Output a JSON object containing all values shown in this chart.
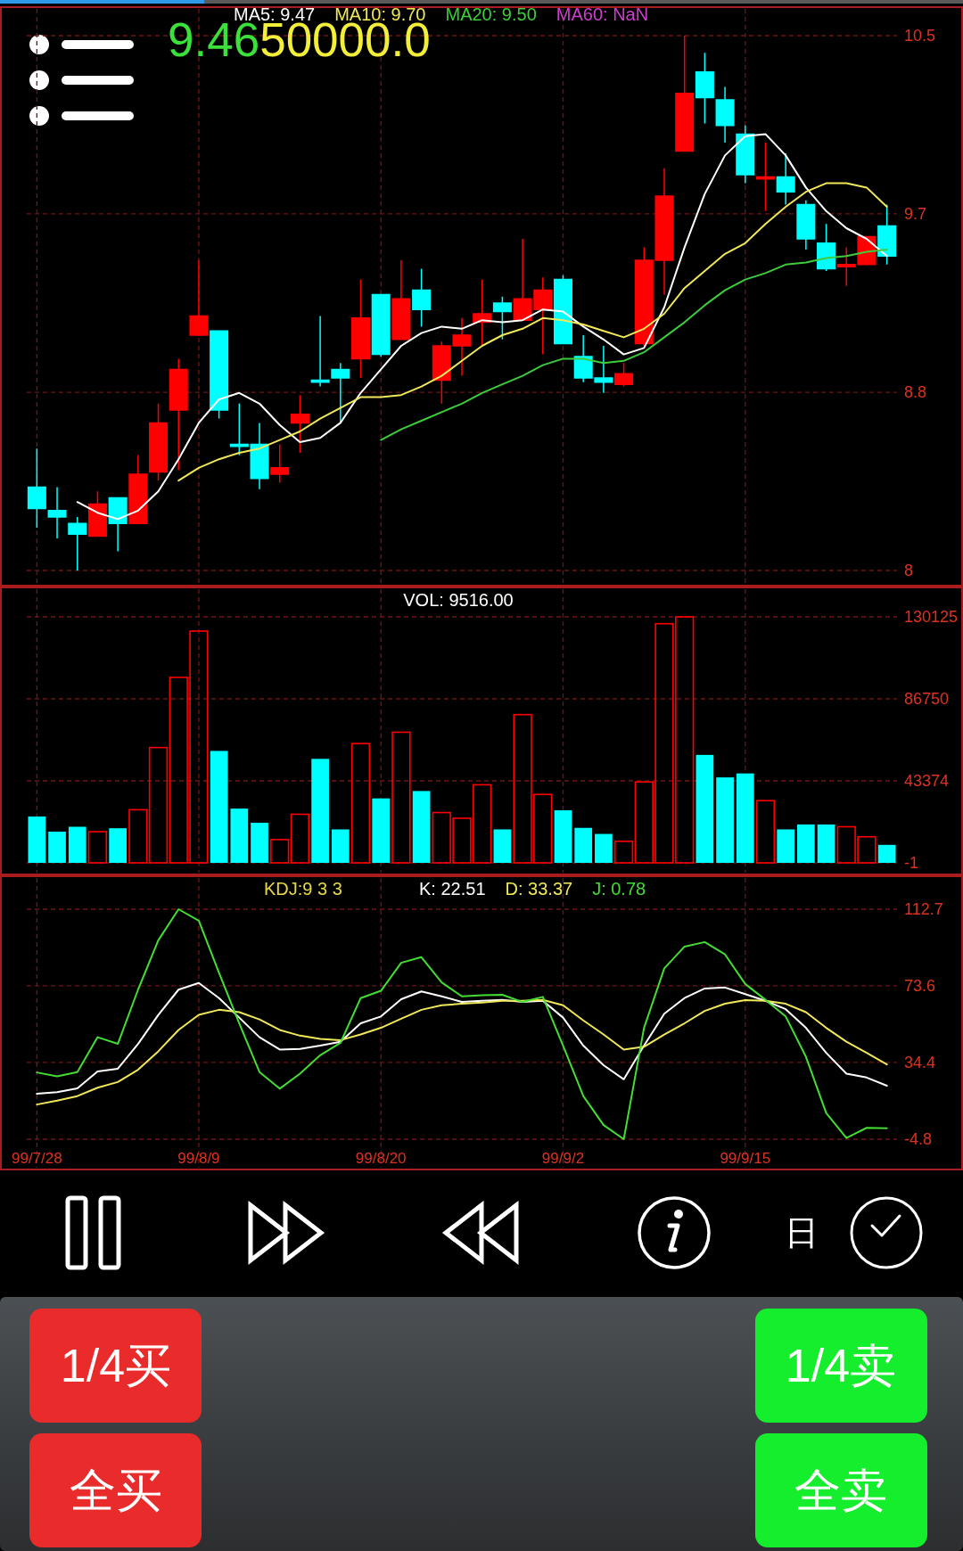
{
  "chart_data": [
    {
      "type": "candlestick",
      "categories": [
        null,
        null,
        null,
        null,
        null,
        null,
        null,
        null,
        null,
        null,
        null,
        null,
        null,
        null,
        null,
        null,
        null,
        null,
        null,
        null,
        null,
        null,
        null,
        null,
        null,
        null,
        null,
        null,
        null,
        null,
        null,
        null,
        null,
        null,
        null,
        null,
        null,
        null,
        null,
        null,
        null,
        null,
        null
      ],
      "ohlc": [
        [
          8.39,
          8.57,
          8.2,
          8.29
        ],
        [
          8.28,
          8.39,
          8.15,
          8.25
        ],
        [
          8.22,
          8.25,
          8.0,
          8.17
        ],
        [
          8.16,
          8.37,
          8.16,
          8.31
        ],
        [
          8.34,
          8.34,
          8.09,
          8.22
        ],
        [
          8.22,
          8.54,
          8.22,
          8.45
        ],
        [
          8.46,
          8.78,
          8.42,
          8.69
        ],
        [
          8.75,
          8.99,
          8.47,
          8.94
        ],
        [
          9.1,
          9.45,
          9.1,
          9.19
        ],
        [
          9.12,
          9.12,
          8.71,
          8.75
        ],
        [
          8.59,
          8.78,
          8.54,
          8.58
        ],
        [
          8.59,
          8.69,
          8.38,
          8.43
        ],
        [
          8.45,
          8.59,
          8.41,
          8.48
        ],
        [
          8.69,
          8.82,
          8.55,
          8.73
        ],
        [
          8.89,
          9.19,
          8.86,
          8.88
        ],
        [
          8.94,
          8.97,
          8.69,
          8.9
        ],
        [
          8.99,
          9.36,
          8.9,
          9.18
        ],
        [
          9.29,
          9.29,
          9.0,
          9.01
        ],
        [
          9.08,
          9.45,
          9.08,
          9.27
        ],
        [
          9.31,
          9.41,
          9.14,
          9.22
        ],
        [
          8.89,
          9.07,
          8.78,
          9.05
        ],
        [
          9.05,
          9.18,
          8.91,
          9.1
        ],
        [
          9.16,
          9.36,
          9.05,
          9.2
        ],
        [
          9.25,
          9.28,
          9.08,
          9.21
        ],
        [
          9.17,
          9.55,
          9.17,
          9.27
        ],
        [
          9.22,
          9.37,
          9.01,
          9.31
        ],
        [
          9.36,
          9.38,
          9.06,
          9.06
        ],
        [
          9.0,
          9.1,
          8.88,
          8.9
        ],
        [
          8.9,
          9.05,
          8.83,
          8.88
        ],
        [
          8.87,
          8.97,
          8.86,
          8.92
        ],
        [
          9.06,
          9.51,
          9.05,
          9.45
        ],
        [
          9.45,
          9.88,
          9.29,
          9.75
        ],
        [
          9.96,
          10.5,
          9.96,
          10.23
        ],
        [
          10.33,
          10.42,
          10.09,
          10.21
        ],
        [
          10.2,
          10.26,
          10.0,
          10.08
        ],
        [
          10.04,
          10.08,
          9.81,
          9.85
        ],
        [
          9.83,
          10.0,
          9.68,
          9.84
        ],
        [
          9.84,
          9.95,
          9.71,
          9.77
        ],
        [
          9.71,
          9.73,
          9.5,
          9.55
        ],
        [
          9.53,
          9.62,
          9.4,
          9.41
        ],
        [
          9.42,
          9.51,
          9.33,
          9.43
        ],
        [
          9.43,
          9.56,
          9.43,
          9.56
        ],
        [
          9.61,
          9.71,
          9.43,
          9.47
        ]
      ],
      "colors": [
        "#00ffff",
        "#00ffff",
        "#00ffff",
        "#ff0000",
        "#00ffff",
        "#ff0000",
        "#ff0000",
        "#ff0000",
        "#ff0000",
        "#00ffff",
        "#00ffff",
        "#00ffff",
        "#ff0000",
        "#ff0000",
        "#00ffff",
        "#00ffff",
        "#ff0000",
        "#00ffff",
        "#ff0000",
        "#00ffff",
        "#ff0000",
        "#ff0000",
        "#ff0000",
        "#00ffff",
        "#ff0000",
        "#ff0000",
        "#00ffff",
        "#00ffff",
        "#00ffff",
        "#ff0000",
        "#ff0000",
        "#ff0000",
        "#ff0000",
        "#00ffff",
        "#00ffff",
        "#00ffff",
        "#ff0000",
        "#00ffff",
        "#00ffff",
        "#00ffff",
        "#ff0000",
        "#ff0000",
        "#00ffff"
      ],
      "series": [
        {
          "name": "MA5: 9.47",
          "type": "line",
          "color": "#ffffff",
          "values": [
            null,
            null,
            8.32,
            8.27,
            8.24,
            8.28,
            8.37,
            8.52,
            8.69,
            8.8,
            8.83,
            8.78,
            8.68,
            8.6,
            8.62,
            8.69,
            8.83,
            8.94,
            9.05,
            9.11,
            9.14,
            9.13,
            9.17,
            9.16,
            9.17,
            9.22,
            9.21,
            9.14,
            9.08,
            9.01,
            9.04,
            9.23,
            9.51,
            9.76,
            9.94,
            10.03,
            10.04,
            9.94,
            9.79,
            9.68,
            9.6,
            9.55,
            9.47
          ]
        },
        {
          "name": "MA10: 9.70",
          "type": "line",
          "color": "#f0e858",
          "values": [
            null,
            null,
            null,
            null,
            null,
            null,
            null,
            8.42,
            8.48,
            8.52,
            8.55,
            8.57,
            8.61,
            8.65,
            8.71,
            8.76,
            8.81,
            8.81,
            8.82,
            8.86,
            8.91,
            8.98,
            9.05,
            9.1,
            9.13,
            9.18,
            9.17,
            9.15,
            9.12,
            9.09,
            9.13,
            9.2,
            9.32,
            9.4,
            9.48,
            9.53,
            9.62,
            9.7,
            9.77,
            9.81,
            9.81,
            9.79,
            9.7
          ]
        },
        {
          "name": "MA20: 9.50",
          "type": "line",
          "color": "#3ccc3c",
          "values": [
            null,
            null,
            null,
            null,
            null,
            null,
            null,
            null,
            null,
            null,
            null,
            null,
            null,
            null,
            null,
            null,
            null,
            8.61,
            8.66,
            8.7,
            8.74,
            8.78,
            8.83,
            8.87,
            8.91,
            8.96,
            8.99,
            8.99,
            8.97,
            8.98,
            9.02,
            9.09,
            9.16,
            9.24,
            9.31,
            9.36,
            9.39,
            9.43,
            9.44,
            9.46,
            9.47,
            9.49,
            9.5
          ]
        },
        {
          "name": "MA60: NaN",
          "type": "line",
          "color": "#cc3fcc",
          "values": [
            null,
            null,
            null,
            null,
            null,
            null,
            null,
            null,
            null,
            null,
            null,
            null,
            null,
            null,
            null,
            null,
            null,
            null,
            null,
            null,
            null,
            null,
            null,
            null,
            null,
            null,
            null,
            null,
            null,
            null,
            null,
            null,
            null,
            null,
            null,
            null,
            null,
            null,
            null,
            null,
            null,
            null,
            null
          ]
        }
      ],
      "ylim": [
        8,
        10.5
      ],
      "yticks": [
        8,
        {
          "value": 8.833,
          "label": "8.8"
        },
        {
          "value": 9.667,
          "label": "9.7"
        },
        10.5
      ],
      "grid": true,
      "legend": "top",
      "tick_labels": "y",
      "annotations": [
        "9.46",
        "50000.0"
      ]
    },
    {
      "type": "bar",
      "title": "VOL: 9516.00",
      "categories": [
        null,
        null,
        null,
        null,
        null,
        null,
        null,
        null,
        null,
        null,
        null,
        null,
        null,
        null,
        null,
        null,
        null,
        null,
        null,
        null,
        null,
        null,
        null,
        null,
        null,
        null,
        null,
        null,
        null,
        null,
        null,
        null,
        null,
        null,
        null,
        null,
        null,
        null,
        null,
        null,
        null,
        null,
        null
      ],
      "values": [
        24500,
        16500,
        19100,
        16500,
        18300,
        28100,
        61000,
        98100,
        122600,
        59200,
        28700,
        21200,
        12300,
        25700,
        55000,
        17700,
        63100,
        34100,
        69100,
        38000,
        26600,
        23600,
        41300,
        17700,
        78400,
        36200,
        27800,
        18500,
        15300,
        11400,
        42800,
        126500,
        130100,
        57100,
        45200,
        47300,
        32900,
        17700,
        20300,
        20300,
        19100,
        13800,
        9516
      ],
      "colors": [
        "#00ffff",
        "#00ffff",
        "#00ffff",
        "#ff0000",
        "#00ffff",
        "#ff0000",
        "#ff0000",
        "#ff0000",
        "#ff0000",
        "#00ffff",
        "#00ffff",
        "#00ffff",
        "#ff0000",
        "#ff0000",
        "#00ffff",
        "#00ffff",
        "#ff0000",
        "#00ffff",
        "#ff0000",
        "#00ffff",
        "#ff0000",
        "#ff0000",
        "#ff0000",
        "#00ffff",
        "#ff0000",
        "#ff0000",
        "#00ffff",
        "#00ffff",
        "#00ffff",
        "#ff0000",
        "#ff0000",
        "#ff0000",
        "#ff0000",
        "#00ffff",
        "#00ffff",
        "#00ffff",
        "#ff0000",
        "#00ffff",
        "#00ffff",
        "#00ffff",
        "#ff0000",
        "#ff0000",
        "#00ffff"
      ],
      "ylim": [
        -1,
        130125
      ],
      "yticks": [
        -1,
        43374,
        86750,
        130125
      ],
      "grid": true,
      "tick_labels": "y"
    },
    {
      "type": "line",
      "title": "KDJ:9 3 3",
      "categories": [
        "99/7/28",
        null,
        null,
        null,
        null,
        null,
        null,
        null,
        "99/8/9",
        null,
        null,
        null,
        null,
        null,
        null,
        null,
        null,
        "99/8/20",
        null,
        null,
        null,
        null,
        null,
        null,
        null,
        null,
        "99/9/2",
        null,
        null,
        null,
        null,
        null,
        null,
        null,
        null,
        "99/9/15",
        null,
        null,
        null,
        null,
        null,
        null,
        null
      ],
      "series": [
        {
          "name": "K: 22.51",
          "color": "#ffffff",
          "values": [
            18.4,
            19.2,
            21.2,
            29.8,
            31.2,
            43.9,
            58.7,
            71.6,
            75.0,
            67.3,
            57.3,
            47.3,
            41.0,
            41.3,
            43.0,
            45.0,
            54.4,
            57.9,
            66.7,
            70.7,
            68.2,
            65.3,
            65.9,
            66.4,
            65.3,
            65.9,
            57.3,
            43.0,
            33.0,
            25.8,
            43.0,
            59.3,
            67.3,
            72.2,
            72.7,
            69.3,
            65.9,
            61.6,
            52.1,
            39.3,
            28.7,
            26.7,
            22.51
          ]
        },
        {
          "name": "D: 33.37",
          "color": "#f0e858",
          "values": [
            12.9,
            14.9,
            17.2,
            21.5,
            24.4,
            30.7,
            40.1,
            51.0,
            58.7,
            61.3,
            60.1,
            56.4,
            51.0,
            48.1,
            46.4,
            45.8,
            48.7,
            52.1,
            56.7,
            61.3,
            63.6,
            64.4,
            65.0,
            65.9,
            65.9,
            66.4,
            63.6,
            55.9,
            48.7,
            41.0,
            42.4,
            48.7,
            54.4,
            60.7,
            64.4,
            66.2,
            65.9,
            64.4,
            60.1,
            52.1,
            45.0,
            39.3,
            33.37
          ]
        },
        {
          "name": "J: 0.78",
          "color": "#44dd33",
          "values": [
            29.3,
            27.3,
            29.5,
            47.3,
            43.9,
            71.6,
            96.8,
            112.7,
            106.8,
            80.2,
            54.4,
            29.5,
            21.0,
            28.7,
            38.1,
            44.4,
            67.3,
            71.0,
            85.3,
            88.2,
            75.3,
            68.2,
            68.7,
            69.0,
            65.3,
            67.9,
            43.0,
            17.2,
            2.4,
            -4.8,
            52.1,
            82.5,
            93.6,
            95.9,
            89.6,
            74.5,
            66.4,
            57.9,
            37.3,
            8.6,
            -4.2,
            1.0,
            0.78
          ]
        }
      ],
      "ylim": [
        -4.8,
        112.7
      ],
      "yticks": [
        -4.8,
        34.4,
        73.6,
        112.7
      ],
      "grid": true,
      "legend": "top"
    },
    {
      "type": "other",
      "annotations": [
        "日",
        "1/4买",
        "1/4卖",
        "全买",
        "全卖"
      ]
    }
  ]
}
